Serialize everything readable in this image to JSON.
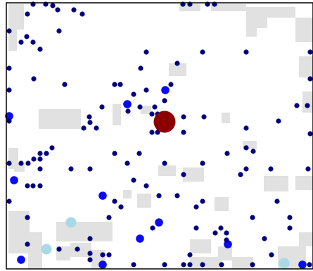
{
  "board": {
    "colors": {
      "background": "#ffffff",
      "obstacle": "#e1e1e1",
      "border": "#000000",
      "food_navy": "#00007f",
      "food_blue": "#0a0af5",
      "food_light": "#a9d8e6",
      "player": "#8b0000"
    },
    "obstacle_icon": "wall-block",
    "food_icon": "food-pellet",
    "player_icon": "player-cell"
  }
}
